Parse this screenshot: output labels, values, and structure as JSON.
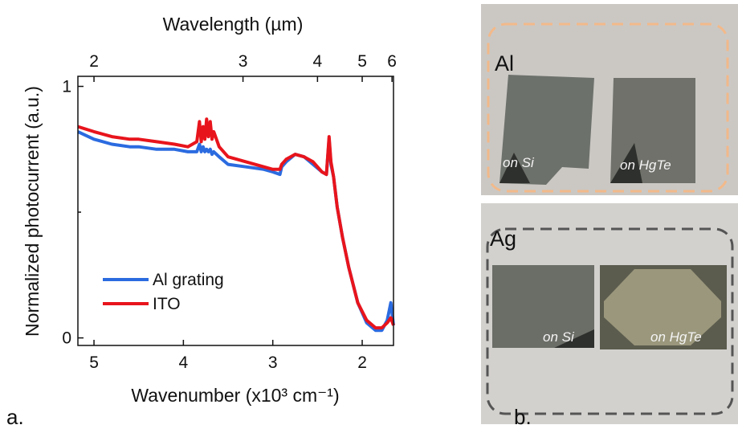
{
  "chart_data": {
    "type": "line",
    "x_label": "Wavenumber (x10³ cm⁻¹)",
    "y_label": "Normalized photocurrent (a.u.)",
    "x2_label": "Wavelength (µm)",
    "xlim": [
      5.18,
      1.65
    ],
    "xticks": [
      5,
      4,
      3,
      2
    ],
    "x2ticks": [
      2,
      3,
      4,
      5,
      6
    ],
    "ylim": [
      -0.03,
      1.04
    ],
    "yticks": [
      0,
      1
    ],
    "yminor_ticks": [
      0.5
    ],
    "legend": "lower left",
    "x": [
      5.18,
      5.0,
      4.8,
      4.6,
      4.5,
      4.3,
      4.1,
      3.95,
      3.85,
      3.82,
      3.8,
      3.78,
      3.76,
      3.74,
      3.72,
      3.7,
      3.68,
      3.66,
      3.6,
      3.5,
      3.3,
      3.1,
      3.0,
      2.92,
      2.9,
      2.85,
      2.75,
      2.65,
      2.55,
      2.45,
      2.4,
      2.37,
      2.35,
      2.32,
      2.28,
      2.22,
      2.15,
      2.05,
      1.95,
      1.85,
      1.78,
      1.72,
      1.68,
      1.65
    ],
    "series": [
      {
        "name": "Al grating",
        "color": "#2b6be0",
        "values": [
          0.82,
          0.79,
          0.77,
          0.76,
          0.76,
          0.75,
          0.75,
          0.74,
          0.74,
          0.77,
          0.74,
          0.76,
          0.74,
          0.75,
          0.74,
          0.75,
          0.73,
          0.74,
          0.72,
          0.69,
          0.68,
          0.67,
          0.66,
          0.65,
          0.68,
          0.7,
          0.73,
          0.72,
          0.69,
          0.66,
          0.65,
          0.79,
          0.69,
          0.64,
          0.52,
          0.4,
          0.28,
          0.14,
          0.06,
          0.03,
          0.03,
          0.07,
          0.14,
          0.05
        ]
      },
      {
        "name": "ITO",
        "color": "#e8141c",
        "values": [
          0.84,
          0.82,
          0.8,
          0.79,
          0.79,
          0.78,
          0.77,
          0.76,
          0.78,
          0.86,
          0.78,
          0.84,
          0.79,
          0.87,
          0.8,
          0.86,
          0.79,
          0.82,
          0.76,
          0.72,
          0.7,
          0.68,
          0.67,
          0.67,
          0.69,
          0.71,
          0.73,
          0.72,
          0.7,
          0.66,
          0.65,
          0.8,
          0.7,
          0.64,
          0.52,
          0.4,
          0.28,
          0.14,
          0.07,
          0.04,
          0.04,
          0.06,
          0.08,
          0.05
        ]
      }
    ]
  },
  "figure": {
    "panel_labels": [
      "a.",
      "b."
    ],
    "photos": [
      {
        "label": "Al",
        "samples": [
          "on Si",
          "on HgTe"
        ]
      },
      {
        "label": "Ag",
        "samples": [
          "on Si",
          "on HgTe"
        ]
      }
    ]
  }
}
